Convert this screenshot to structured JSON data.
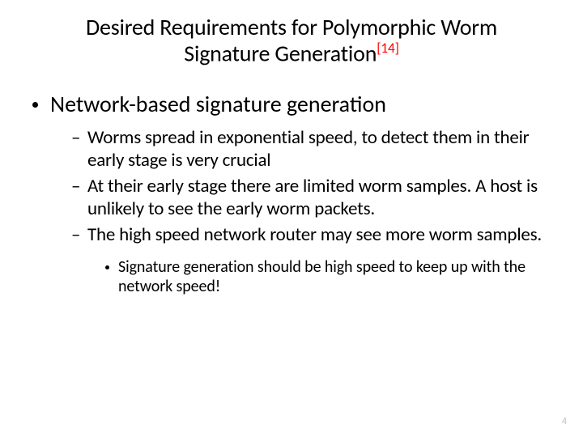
{
  "colors": {
    "background": "#ffffff",
    "text": "#000000",
    "ref": "#ff0000",
    "page_num": "#bfbfbf"
  },
  "typography": {
    "font_family": "Calibri",
    "title_fontsize": 28,
    "l1_fontsize": 28,
    "l2_fontsize": 23,
    "l3_fontsize": 20,
    "page_num_fontsize": 12
  },
  "title": {
    "line1": "Desired Requirements for Polymorphic Worm",
    "line2_before_ref": "Signature Generation",
    "ref": "[14]"
  },
  "bullets": {
    "l1": "Network-based signature generation",
    "l2": [
      "Worms spread in exponential speed, to detect them in their early stage is very crucial",
      "At their early stage there are limited worm samples. A host is unlikely to see the early worm packets.",
      "The high speed network router may see more worm samples."
    ],
    "l3": "Signature generation should be high speed to keep up with the network speed!"
  },
  "page_number": "4"
}
